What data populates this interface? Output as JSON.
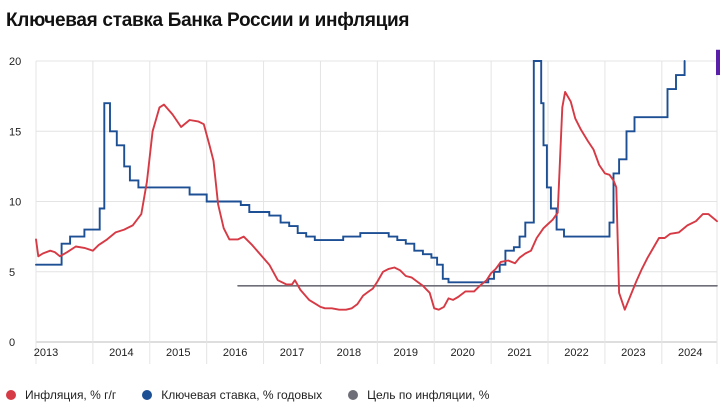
{
  "title": "Ключевая ставка Банка России и инфляция",
  "colors": {
    "inflation": "#d63a45",
    "key_rate": "#1c4f94",
    "target": "#6e6e78",
    "marker": "#5a1fa8",
    "grid": "#e4e4e4"
  },
  "chart_data": {
    "type": "line",
    "title": "Ключевая ставка Банка России и инфляция",
    "xlabel": "",
    "ylabel": "",
    "xlim": [
      2013.0,
      2024.97
    ],
    "ylim": [
      0,
      20
    ],
    "yticks": [
      "0",
      "5",
      "10",
      "15",
      "20"
    ],
    "xticks": [
      "2013",
      "2014",
      "2015",
      "2016",
      "2017",
      "2018",
      "2019",
      "2020",
      "2021",
      "2022",
      "2023",
      "2024"
    ],
    "grid": true,
    "legend_position": "bottom",
    "series": [
      {
        "name": "Инфляция, % г/г",
        "key": "inflation",
        "step": false,
        "points": [
          [
            2013.0,
            7.3
          ],
          [
            2013.04,
            6.1
          ],
          [
            2013.12,
            6.3
          ],
          [
            2013.25,
            6.5
          ],
          [
            2013.33,
            6.4
          ],
          [
            2013.42,
            6.1
          ],
          [
            2013.55,
            6.4
          ],
          [
            2013.7,
            6.8
          ],
          [
            2013.85,
            6.7
          ],
          [
            2014.0,
            6.5
          ],
          [
            2014.1,
            6.9
          ],
          [
            2014.25,
            7.3
          ],
          [
            2014.4,
            7.8
          ],
          [
            2014.55,
            8.0
          ],
          [
            2014.7,
            8.3
          ],
          [
            2014.85,
            9.1
          ],
          [
            2014.95,
            11.4
          ],
          [
            2015.05,
            15.0
          ],
          [
            2015.17,
            16.7
          ],
          [
            2015.25,
            16.9
          ],
          [
            2015.4,
            16.2
          ],
          [
            2015.55,
            15.3
          ],
          [
            2015.7,
            15.8
          ],
          [
            2015.85,
            15.7
          ],
          [
            2015.95,
            15.5
          ],
          [
            2016.05,
            14.0
          ],
          [
            2016.12,
            12.9
          ],
          [
            2016.2,
            9.8
          ],
          [
            2016.3,
            8.1
          ],
          [
            2016.4,
            7.3
          ],
          [
            2016.55,
            7.3
          ],
          [
            2016.65,
            7.5
          ],
          [
            2016.8,
            6.9
          ],
          [
            2016.95,
            6.2
          ],
          [
            2017.1,
            5.5
          ],
          [
            2017.25,
            4.4
          ],
          [
            2017.4,
            4.1
          ],
          [
            2017.5,
            4.1
          ],
          [
            2017.55,
            4.4
          ],
          [
            2017.65,
            3.7
          ],
          [
            2017.8,
            3.0
          ],
          [
            2017.92,
            2.7
          ],
          [
            2018.0,
            2.5
          ],
          [
            2018.08,
            2.4
          ],
          [
            2018.2,
            2.4
          ],
          [
            2018.33,
            2.3
          ],
          [
            2018.45,
            2.3
          ],
          [
            2018.55,
            2.4
          ],
          [
            2018.65,
            2.7
          ],
          [
            2018.75,
            3.3
          ],
          [
            2018.85,
            3.6
          ],
          [
            2018.92,
            3.8
          ],
          [
            2019.0,
            4.3
          ],
          [
            2019.1,
            5.0
          ],
          [
            2019.2,
            5.2
          ],
          [
            2019.3,
            5.3
          ],
          [
            2019.4,
            5.1
          ],
          [
            2019.5,
            4.7
          ],
          [
            2019.6,
            4.6
          ],
          [
            2019.7,
            4.3
          ],
          [
            2019.8,
            4.0
          ],
          [
            2019.92,
            3.5
          ],
          [
            2020.0,
            2.4
          ],
          [
            2020.08,
            2.3
          ],
          [
            2020.17,
            2.5
          ],
          [
            2020.25,
            3.1
          ],
          [
            2020.33,
            3.0
          ],
          [
            2020.42,
            3.2
          ],
          [
            2020.55,
            3.6
          ],
          [
            2020.7,
            3.6
          ],
          [
            2020.8,
            4.0
          ],
          [
            2020.92,
            4.4
          ],
          [
            2021.0,
            4.9
          ],
          [
            2021.08,
            5.2
          ],
          [
            2021.17,
            5.7
          ],
          [
            2021.3,
            5.8
          ],
          [
            2021.42,
            5.6
          ],
          [
            2021.5,
            6.0
          ],
          [
            2021.6,
            6.3
          ],
          [
            2021.7,
            6.5
          ],
          [
            2021.8,
            7.4
          ],
          [
            2021.92,
            8.1
          ],
          [
            2022.0,
            8.4
          ],
          [
            2022.08,
            8.7
          ],
          [
            2022.17,
            9.2
          ],
          [
            2022.25,
            16.7
          ],
          [
            2022.3,
            17.8
          ],
          [
            2022.4,
            17.1
          ],
          [
            2022.48,
            15.9
          ],
          [
            2022.58,
            15.1
          ],
          [
            2022.7,
            14.3
          ],
          [
            2022.8,
            13.7
          ],
          [
            2022.9,
            12.6
          ],
          [
            2023.0,
            12.0
          ],
          [
            2023.08,
            11.9
          ],
          [
            2023.15,
            11.5
          ],
          [
            2023.2,
            11.0
          ],
          [
            2023.25,
            3.5
          ],
          [
            2023.35,
            2.3
          ],
          [
            2023.45,
            3.3
          ],
          [
            2023.55,
            4.3
          ],
          [
            2023.65,
            5.2
          ],
          [
            2023.75,
            6.0
          ],
          [
            2023.85,
            6.7
          ],
          [
            2023.95,
            7.4
          ],
          [
            2024.05,
            7.4
          ],
          [
            2024.15,
            7.7
          ],
          [
            2024.3,
            7.8
          ],
          [
            2024.45,
            8.3
          ],
          [
            2024.6,
            8.6
          ],
          [
            2024.72,
            9.1
          ],
          [
            2024.82,
            9.1
          ],
          [
            2024.97,
            8.6
          ]
        ]
      },
      {
        "name": "Ключевая ставка, % годовых",
        "key": "key_rate",
        "step": true,
        "points": [
          [
            2013.0,
            5.5
          ],
          [
            2013.45,
            5.5
          ],
          [
            2013.45,
            7.0
          ],
          [
            2013.6,
            7.0
          ],
          [
            2013.6,
            7.5
          ],
          [
            2013.85,
            7.5
          ],
          [
            2013.85,
            8.0
          ],
          [
            2014.12,
            8.0
          ],
          [
            2014.12,
            9.5
          ],
          [
            2014.2,
            9.5
          ],
          [
            2014.2,
            17.0
          ],
          [
            2014.3,
            17.0
          ],
          [
            2014.3,
            15.0
          ],
          [
            2014.42,
            15.0
          ],
          [
            2014.42,
            14.0
          ],
          [
            2014.55,
            14.0
          ],
          [
            2014.55,
            12.5
          ],
          [
            2014.65,
            12.5
          ],
          [
            2014.65,
            11.5
          ],
          [
            2014.8,
            11.5
          ],
          [
            2014.8,
            11.0
          ],
          [
            2015.7,
            11.0
          ],
          [
            2015.7,
            10.5
          ],
          [
            2016.0,
            10.5
          ],
          [
            2016.0,
            10.0
          ],
          [
            2016.6,
            10.0
          ],
          [
            2016.6,
            9.75
          ],
          [
            2016.75,
            9.75
          ],
          [
            2016.75,
            9.25
          ],
          [
            2017.1,
            9.25
          ],
          [
            2017.1,
            9.0
          ],
          [
            2017.3,
            9.0
          ],
          [
            2017.3,
            8.5
          ],
          [
            2017.45,
            8.5
          ],
          [
            2017.45,
            8.25
          ],
          [
            2017.6,
            8.25
          ],
          [
            2017.6,
            7.75
          ],
          [
            2017.75,
            7.75
          ],
          [
            2017.75,
            7.5
          ],
          [
            2017.9,
            7.5
          ],
          [
            2017.9,
            7.25
          ],
          [
            2018.4,
            7.25
          ],
          [
            2018.4,
            7.5
          ],
          [
            2018.7,
            7.5
          ],
          [
            2018.7,
            7.75
          ],
          [
            2019.2,
            7.75
          ],
          [
            2019.2,
            7.5
          ],
          [
            2019.35,
            7.5
          ],
          [
            2019.35,
            7.25
          ],
          [
            2019.5,
            7.25
          ],
          [
            2019.5,
            7.0
          ],
          [
            2019.65,
            7.0
          ],
          [
            2019.65,
            6.5
          ],
          [
            2019.8,
            6.5
          ],
          [
            2019.8,
            6.25
          ],
          [
            2019.95,
            6.25
          ],
          [
            2019.95,
            6.0
          ],
          [
            2020.05,
            6.0
          ],
          [
            2020.05,
            5.5
          ],
          [
            2020.15,
            5.5
          ],
          [
            2020.15,
            4.5
          ],
          [
            2020.25,
            4.5
          ],
          [
            2020.25,
            4.25
          ],
          [
            2020.95,
            4.25
          ],
          [
            2020.95,
            4.5
          ],
          [
            2021.05,
            4.5
          ],
          [
            2021.05,
            5.0
          ],
          [
            2021.15,
            5.0
          ],
          [
            2021.15,
            5.5
          ],
          [
            2021.25,
            5.5
          ],
          [
            2021.25,
            6.5
          ],
          [
            2021.4,
            6.5
          ],
          [
            2021.4,
            6.75
          ],
          [
            2021.5,
            6.75
          ],
          [
            2021.5,
            7.5
          ],
          [
            2021.6,
            7.5
          ],
          [
            2021.6,
            8.5
          ],
          [
            2021.75,
            8.5
          ],
          [
            2021.75,
            20.0
          ],
          [
            2021.88,
            20.0
          ],
          [
            2021.88,
            17.0
          ],
          [
            2021.92,
            17.0
          ],
          [
            2021.92,
            14.0
          ],
          [
            2021.98,
            14.0
          ],
          [
            2021.98,
            11.0
          ],
          [
            2022.05,
            11.0
          ],
          [
            2022.05,
            9.5
          ],
          [
            2022.15,
            9.5
          ],
          [
            2022.15,
            8.0
          ],
          [
            2022.28,
            8.0
          ],
          [
            2022.28,
            7.5
          ],
          [
            2023.08,
            7.5
          ],
          [
            2023.08,
            8.5
          ],
          [
            2023.15,
            8.5
          ],
          [
            2023.15,
            12.0
          ],
          [
            2023.25,
            12.0
          ],
          [
            2023.25,
            13.0
          ],
          [
            2023.38,
            13.0
          ],
          [
            2023.38,
            15.0
          ],
          [
            2023.52,
            15.0
          ],
          [
            2023.52,
            16.0
          ],
          [
            2024.1,
            16.0
          ],
          [
            2024.1,
            18.0
          ],
          [
            2024.25,
            18.0
          ],
          [
            2024.25,
            19.0
          ],
          [
            2024.4,
            19.0
          ],
          [
            2024.4,
            21.0
          ]
        ]
      },
      {
        "name": "Цель по инфляции, %",
        "key": "target",
        "step": false,
        "points": [
          [
            2016.55,
            4.0
          ],
          [
            2024.97,
            4.0
          ]
        ]
      }
    ]
  }
}
